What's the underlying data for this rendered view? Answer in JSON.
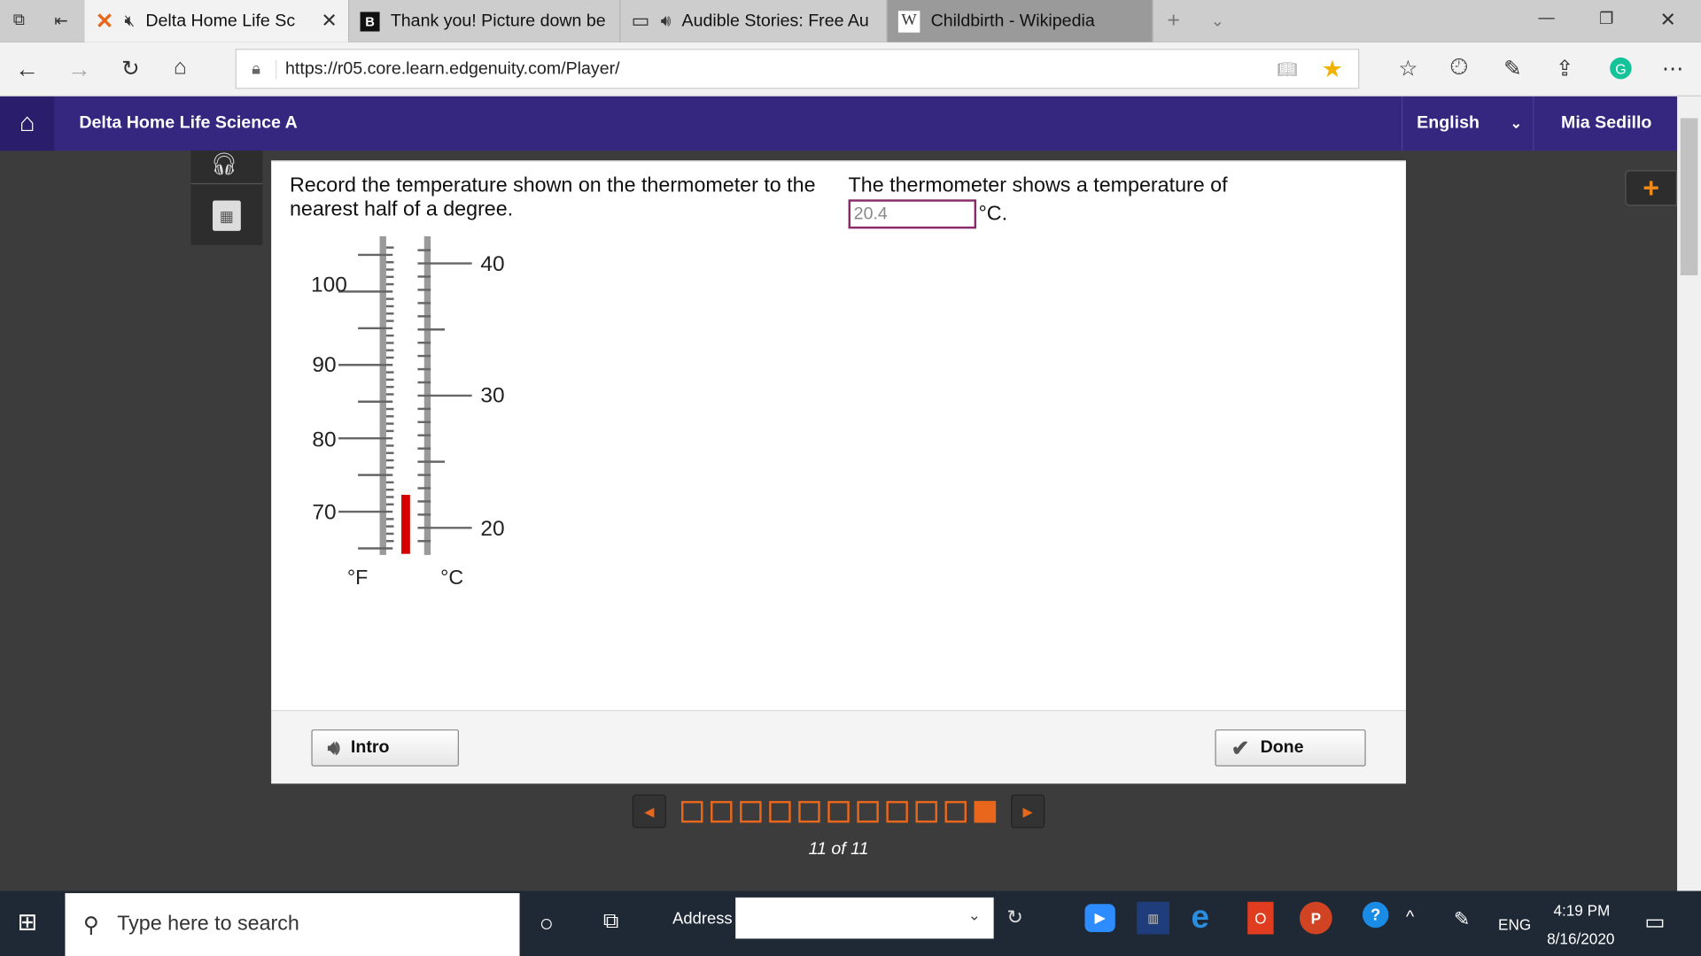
{
  "browser": {
    "tabs": [
      {
        "title": "Delta Home Life Sc",
        "icon": "edgenuity-x-icon",
        "muted": true,
        "active": true
      },
      {
        "title": "Thank you! Picture down be",
        "icon": "brainly-b-icon"
      },
      {
        "title": "Audible Stories: Free Au",
        "icon": "audio-icon"
      },
      {
        "title": "Childbirth - Wikipedia",
        "icon": "wikipedia-w-icon"
      }
    ],
    "url": "https://r05.core.learn.edgenuity.com/Player/"
  },
  "header": {
    "course": "Delta Home Life Science A",
    "language": "English",
    "user": "Mia Sedillo"
  },
  "question": {
    "prompt": "Record the temperature shown on the thermometer to the nearest half of a degree.",
    "answer_prefix": "The thermometer shows a temperature of",
    "answer_value": "20.4",
    "answer_unit": "°C."
  },
  "thermometer": {
    "f_labels": [
      "100",
      "90",
      "80",
      "70"
    ],
    "c_labels": [
      "40",
      "30",
      "20"
    ],
    "f_unit": "°F",
    "c_unit": "°C",
    "liquid_celsius": 22.5,
    "liquid_color": "#d40000"
  },
  "footer": {
    "intro": "Intro",
    "done": "Done"
  },
  "pager": {
    "total": 11,
    "current": 11,
    "label": "11 of 11",
    "accent": "#e8671c"
  },
  "taskbar": {
    "search": "Type here to search",
    "address": "Address",
    "lang": "ENG",
    "time": "4:19 PM",
    "date": "8/16/2020"
  }
}
